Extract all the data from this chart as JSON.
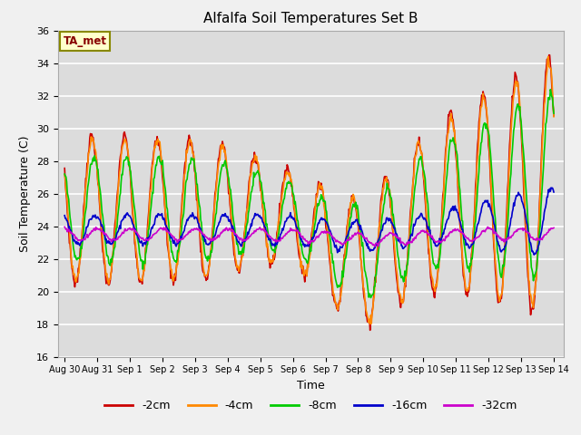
{
  "title": "Alfalfa Soil Temperatures Set B",
  "xlabel": "Time",
  "ylabel": "Soil Temperature (C)",
  "ylim": [
    16,
    36
  ],
  "annotation": "TA_met",
  "bg_color": "#dcdcdc",
  "grid_color": "#ffffff",
  "series_colors": {
    "-2cm": "#cc0000",
    "-4cm": "#ff8800",
    "-8cm": "#00cc00",
    "-16cm": "#0000cc",
    "-32cm": "#cc00cc"
  },
  "series_linewidth": 1.2,
  "yticks": [
    16,
    18,
    20,
    22,
    24,
    26,
    28,
    30,
    32,
    34,
    36
  ],
  "xtick_labels": [
    "Aug 30",
    "Aug 31",
    "Sep 1",
    "Sep 2",
    "Sep 3",
    "Sep 4",
    "Sep 5",
    "Sep 6",
    "Sep 7",
    "Sep 8",
    "Sep 9",
    "Sep 10",
    "Sep 11",
    "Sep 12",
    "Sep 13",
    "Sep 14"
  ],
  "legend_labels": [
    "-2cm",
    "-4cm",
    "-8cm",
    "-16cm",
    "-32cm"
  ]
}
